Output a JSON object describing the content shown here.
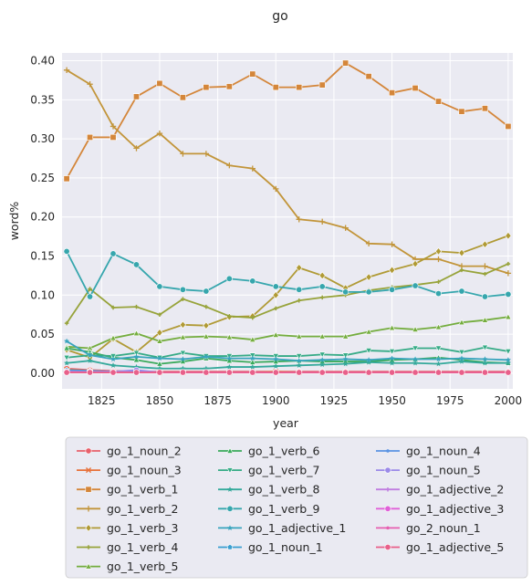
{
  "chart_data": {
    "type": "line",
    "title": "go",
    "xlabel": "year",
    "ylabel": "word%",
    "xlim": [
      1808,
      2002
    ],
    "ylim": [
      -0.02,
      0.41
    ],
    "xticks": [
      1825,
      1850,
      1875,
      1900,
      1925,
      1950,
      1975,
      2000
    ],
    "yticks": [
      0.0,
      0.05,
      0.1,
      0.15,
      0.2,
      0.25,
      0.3,
      0.35,
      0.4
    ],
    "ytick_labels": [
      "0.00",
      "0.05",
      "0.10",
      "0.15",
      "0.20",
      "0.25",
      "0.30",
      "0.35",
      "0.40"
    ],
    "grid": true,
    "background": "#eaeaf2",
    "legend_position": "bottom",
    "x": [
      1810,
      1820,
      1830,
      1840,
      1850,
      1860,
      1870,
      1880,
      1890,
      1900,
      1910,
      1920,
      1930,
      1940,
      1950,
      1960,
      1970,
      1980,
      1990,
      2000
    ],
    "series": [
      {
        "name": "go_1_noun_2",
        "color": "#e8606b",
        "marker": "circle",
        "values": [
          0.006,
          0.004,
          0.003,
          0.002,
          0.002,
          0.002,
          0.002,
          0.002,
          0.002,
          0.002,
          0.002,
          0.002,
          0.002,
          0.002,
          0.002,
          0.002,
          0.002,
          0.002,
          0.002,
          0.002
        ]
      },
      {
        "name": "go_1_noun_3",
        "color": "#e8713a",
        "marker": "x",
        "values": [
          0.005,
          0.003,
          0.002,
          0.002,
          0.001,
          0.001,
          0.001,
          0.001,
          0.001,
          0.002,
          0.001,
          0.001,
          0.001,
          0.001,
          0.001,
          0.001,
          0.001,
          0.001,
          0.001,
          0.001
        ]
      },
      {
        "name": "go_1_verb_1",
        "color": "#d4863a",
        "marker": "square",
        "values": [
          0.249,
          0.302,
          0.302,
          0.354,
          0.371,
          0.353,
          0.366,
          0.367,
          0.383,
          0.366,
          0.366,
          0.369,
          0.397,
          0.38,
          0.359,
          0.365,
          0.348,
          0.335,
          0.339,
          0.316
        ]
      },
      {
        "name": "go_1_verb_2",
        "color": "#c2953a",
        "marker": "plus",
        "values": [
          0.388,
          0.37,
          0.316,
          0.288,
          0.307,
          0.281,
          0.281,
          0.266,
          0.262,
          0.236,
          0.197,
          0.194,
          0.186,
          0.166,
          0.165,
          0.146,
          0.146,
          0.137,
          0.137,
          0.128
        ]
      },
      {
        "name": "go_1_verb_3",
        "color": "#b09a35",
        "marker": "diamond",
        "values": [
          0.03,
          0.02,
          0.044,
          0.027,
          0.052,
          0.062,
          0.061,
          0.072,
          0.073,
          0.1,
          0.135,
          0.125,
          0.109,
          0.123,
          0.132,
          0.14,
          0.156,
          0.154,
          0.165,
          0.176
        ]
      },
      {
        "name": "go_1_verb_4",
        "color": "#97a33a",
        "marker": "plus-small",
        "values": [
          0.064,
          0.108,
          0.084,
          0.085,
          0.075,
          0.095,
          0.085,
          0.073,
          0.071,
          0.083,
          0.093,
          0.097,
          0.1,
          0.106,
          0.11,
          0.113,
          0.117,
          0.132,
          0.127,
          0.14
        ]
      },
      {
        "name": "go_1_verb_5",
        "color": "#74ad3e",
        "marker": "triangle-up",
        "values": [
          0.034,
          0.032,
          0.045,
          0.051,
          0.041,
          0.046,
          0.047,
          0.046,
          0.043,
          0.049,
          0.047,
          0.047,
          0.047,
          0.053,
          0.058,
          0.056,
          0.059,
          0.065,
          0.068,
          0.072
        ]
      },
      {
        "name": "go_1_verb_6",
        "color": "#3aaa5b",
        "marker": "triangle-up",
        "values": [
          0.032,
          0.027,
          0.02,
          0.017,
          0.012,
          0.015,
          0.019,
          0.016,
          0.014,
          0.015,
          0.016,
          0.015,
          0.015,
          0.015,
          0.017,
          0.018,
          0.02,
          0.017,
          0.014,
          0.013
        ]
      },
      {
        "name": "go_1_verb_7",
        "color": "#36ab86",
        "marker": "triangle-down",
        "values": [
          0.02,
          0.023,
          0.022,
          0.026,
          0.02,
          0.026,
          0.022,
          0.022,
          0.023,
          0.022,
          0.022,
          0.024,
          0.023,
          0.029,
          0.028,
          0.032,
          0.032,
          0.027,
          0.033,
          0.028
        ]
      },
      {
        "name": "go_1_verb_8",
        "color": "#34a99b",
        "marker": "star",
        "values": [
          0.013,
          0.016,
          0.01,
          0.008,
          0.006,
          0.006,
          0.006,
          0.008,
          0.008,
          0.009,
          0.01,
          0.011,
          0.012,
          0.014,
          0.013,
          0.013,
          0.012,
          0.015,
          0.013,
          0.013
        ]
      },
      {
        "name": "go_1_verb_9",
        "color": "#36a6ad",
        "marker": "circle",
        "values": [
          0.156,
          0.098,
          0.153,
          0.139,
          0.111,
          0.107,
          0.105,
          0.121,
          0.118,
          0.111,
          0.107,
          0.111,
          0.104,
          0.104,
          0.107,
          0.112,
          0.102,
          0.105,
          0.098,
          0.101
        ]
      },
      {
        "name": "go_1_adjective_1",
        "color": "#38a4bd",
        "marker": "star",
        "values": [
          0.041,
          0.023,
          0.018,
          0.021,
          0.019,
          0.018,
          0.021,
          0.019,
          0.019,
          0.018,
          0.016,
          0.017,
          0.018,
          0.017,
          0.019,
          0.018,
          0.018,
          0.019,
          0.018,
          0.017
        ]
      },
      {
        "name": "go_1_noun_1",
        "color": "#3a9fd0",
        "marker": "pentagon",
        "values": [
          0.004,
          0.003,
          0.002,
          0.001,
          0.001,
          0.001,
          0.001,
          0.001,
          0.001,
          0.001,
          0.001,
          0.001,
          0.001,
          0.001,
          0.001,
          0.001,
          0.001,
          0.001,
          0.001,
          0.001
        ]
      },
      {
        "name": "go_1_noun_4",
        "color": "#5a93e3",
        "marker": "dot",
        "values": [
          0.003,
          0.002,
          0.002,
          0.002,
          0.001,
          0.001,
          0.001,
          0.001,
          0.001,
          0.001,
          0.001,
          0.001,
          0.001,
          0.001,
          0.001,
          0.001,
          0.001,
          0.001,
          0.001,
          0.001
        ]
      },
      {
        "name": "go_1_noun_5",
        "color": "#9b8ae8",
        "marker": "circle",
        "values": [
          0.002,
          0.002,
          0.002,
          0.004,
          0.001,
          0.001,
          0.001,
          0.001,
          0.001,
          0.001,
          0.001,
          0.001,
          0.001,
          0.001,
          0.001,
          0.001,
          0.001,
          0.001,
          0.001,
          0.001
        ]
      },
      {
        "name": "go_1_adjective_2",
        "color": "#c07de0",
        "marker": "plus-small",
        "values": [
          0.002,
          0.001,
          0.001,
          0.001,
          0.001,
          0.001,
          0.001,
          0.001,
          0.001,
          0.001,
          0.001,
          0.001,
          0.001,
          0.001,
          0.001,
          0.001,
          0.001,
          0.001,
          0.001,
          0.001
        ]
      },
      {
        "name": "go_1_adjective_3",
        "color": "#e060d8",
        "marker": "circle",
        "values": [
          0.001,
          0.001,
          0.001,
          0.001,
          0.001,
          0.001,
          0.001,
          0.001,
          0.001,
          0.001,
          0.001,
          0.001,
          0.001,
          0.001,
          0.001,
          0.001,
          0.001,
          0.001,
          0.001,
          0.001
        ]
      },
      {
        "name": "go_2_noun_1",
        "color": "#e65fb0",
        "marker": "dot",
        "values": [
          0.001,
          0.001,
          0.001,
          0.001,
          0.001,
          0.001,
          0.001,
          0.001,
          0.001,
          0.001,
          0.001,
          0.001,
          0.001,
          0.001,
          0.001,
          0.001,
          0.001,
          0.001,
          0.001,
          0.001
        ]
      },
      {
        "name": "go_1_adjective_5",
        "color": "#e8608a",
        "marker": "circle",
        "values": [
          0.001,
          0.001,
          0.001,
          0.001,
          0.001,
          0.001,
          0.001,
          0.001,
          0.001,
          0.001,
          0.001,
          0.001,
          0.001,
          0.001,
          0.001,
          0.001,
          0.001,
          0.001,
          0.001,
          0.001
        ]
      }
    ]
  }
}
